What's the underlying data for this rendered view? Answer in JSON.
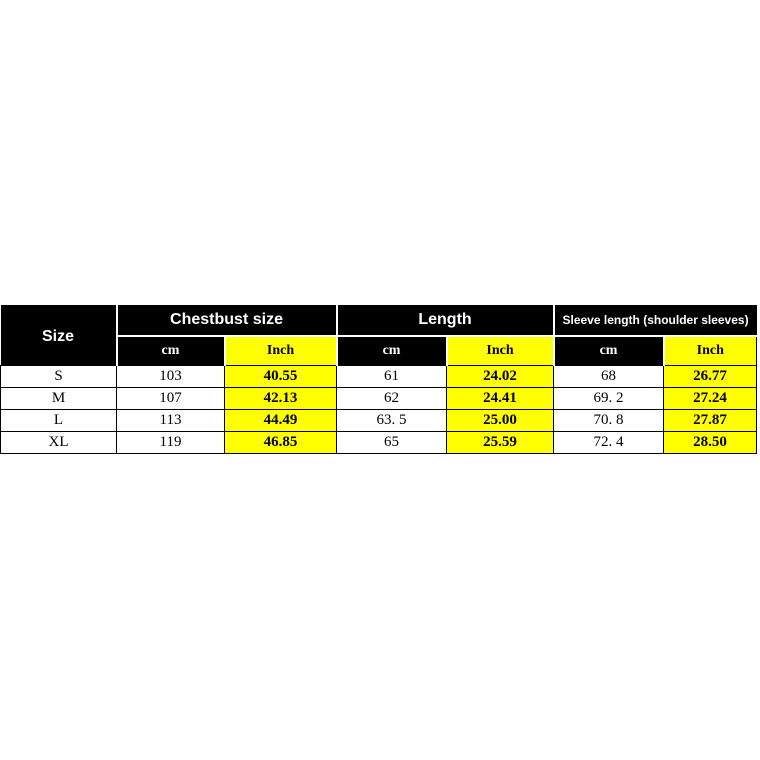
{
  "page": {
    "background_color": "#FFFFFF"
  },
  "colors": {
    "header_bg": "#000000",
    "header_text": "#FFFFFF",
    "highlight_yellow": "#FFFF00",
    "data_text": "#000000",
    "cell_border": "#000000",
    "header_separator": "#FFFFFF"
  },
  "chart_data": {
    "type": "table",
    "corner_label": "Size",
    "column_groups": [
      {
        "label": "Chestbust size",
        "sub_columns": [
          "cm",
          "Inch"
        ]
      },
      {
        "label": "Length",
        "sub_columns": [
          "cm",
          "Inch"
        ]
      },
      {
        "label": "Sleeve length (shoulder sleeves)",
        "sub_columns": [
          "cm",
          "Inch"
        ]
      }
    ],
    "sub_headers": [
      "cm",
      "Inch",
      "cm",
      "Inch",
      "cm",
      "Inch"
    ],
    "highlighted_subheader": "Inch",
    "rows": [
      [
        "S",
        "103",
        "40.55",
        "61",
        "24.02",
        "68",
        "26.77"
      ],
      [
        "M",
        "107",
        "42.13",
        "62",
        "24.41",
        "69. 2",
        "27.24"
      ],
      [
        "L",
        "113",
        "44.49",
        "63. 5",
        "25.00",
        "70. 8",
        "27.87"
      ],
      [
        "XL",
        "119",
        "46.85",
        "65",
        "25.59",
        "72. 4",
        "28.50"
      ]
    ]
  }
}
